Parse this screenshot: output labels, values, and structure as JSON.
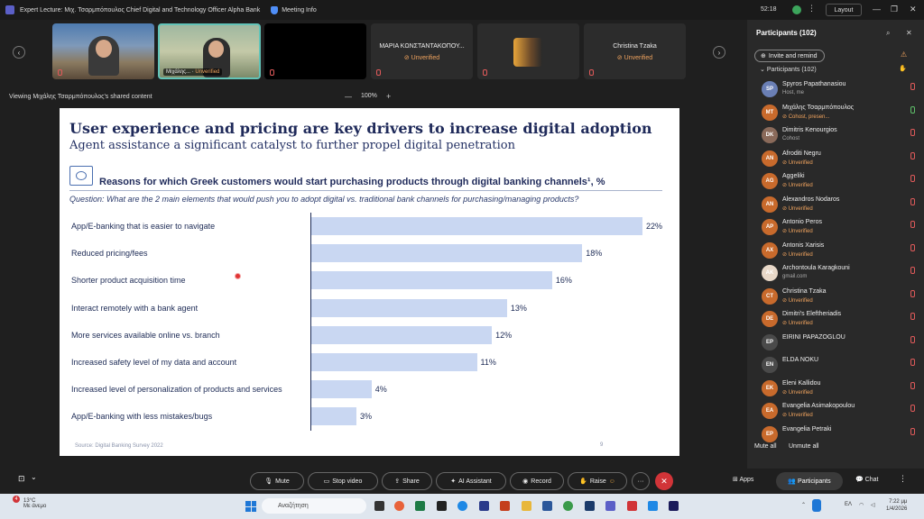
{
  "titlebar": {
    "title": "Expert Lecture: Μιχ. Τσαρμπόπουλος Chief Digital and Technology Officer Alpha Bank",
    "meeting_info": "Meeting Info",
    "clock": "52:18",
    "layout": "Layout"
  },
  "strip": {
    "tiles": [
      {
        "name": "",
        "status": ""
      },
      {
        "name": "Μιχάλης...",
        "status": "Unverified"
      },
      {
        "name": "",
        "status": ""
      },
      {
        "name": "ΜΑΡΙΑ ΚΩΝΣΤΑΝΤΑΚΟΠΟΥ...",
        "status": "Unverified"
      },
      {
        "name": "",
        "status": ""
      },
      {
        "name": "Christina Tzaka",
        "status": "Unverified"
      }
    ]
  },
  "sharebar": {
    "viewing": "Viewing Μιχάλης Τσαρμπόπουλος's shared content",
    "zoom": "100%"
  },
  "slide": {
    "title": "User experience and pricing are key drivers to increase digital adoption",
    "subtitle": "Agent assistance a significant catalyst to further propel digital penetration",
    "heading": "Reasons for which Greek customers would start purchasing products through digital banking channels¹, %",
    "question": "Question: What are the 2 main elements that would push you to adopt digital vs. traditional bank channels for purchasing/managing products?",
    "source": "Source: Digital Banking Survey 2022",
    "page": "9"
  },
  "chart_data": {
    "type": "bar",
    "orientation": "horizontal",
    "categories": [
      "App/E-banking that is easier to navigate",
      "Reduced pricing/fees",
      "Shorter product acquisition time",
      "Interact remotely with a bank agent",
      "More services available online vs. branch",
      "Increased safety level of my data and account",
      "Increased level of personalization of products and services",
      "App/E-banking with less mistakes/bugs"
    ],
    "values": [
      22,
      18,
      16,
      13,
      12,
      11,
      4,
      3
    ],
    "value_labels": [
      "22%",
      "18%",
      "16%",
      "13%",
      "12%",
      "11%",
      "4%",
      "3%"
    ],
    "xlim": [
      0,
      22
    ],
    "bar_color": "#c9d7f2"
  },
  "panel": {
    "title": "Participants (102)",
    "invite": "Invite and remind",
    "section": "Participants (102)",
    "participants": [
      {
        "initials": "SP",
        "name": "Spyros Papathanasiou",
        "sub": "Host, me",
        "unverified": false,
        "color": "#6a7fb5",
        "mic_on": false
      },
      {
        "initials": "MT",
        "name": "Μιχάλης Τσαρμπόπουλος",
        "sub": "Cohost, presen...",
        "unverified": true,
        "color": "#c86a2c",
        "mic_on": true
      },
      {
        "initials": "DK",
        "name": "Dimitris Kenourgios",
        "sub": "Cohost",
        "unverified": false,
        "color": "#8a6a5a",
        "mic_on": false
      },
      {
        "initials": "AN",
        "name": "Afroditi Negru",
        "sub": "Unverified",
        "unverified": true,
        "color": "#c86a2c",
        "mic_on": false
      },
      {
        "initials": "AG",
        "name": "Aggeliki",
        "sub": "Unverified",
        "unverified": true,
        "color": "#c86a2c",
        "mic_on": false
      },
      {
        "initials": "AN",
        "name": "Alexandros Nodaros",
        "sub": "Unverified",
        "unverified": true,
        "color": "#c86a2c",
        "mic_on": false
      },
      {
        "initials": "AP",
        "name": "Antonio Peros",
        "sub": "Unverified",
        "unverified": true,
        "color": "#c86a2c",
        "mic_on": false
      },
      {
        "initials": "AX",
        "name": "Antonis Xarisis",
        "sub": "Unverified",
        "unverified": true,
        "color": "#c86a2c",
        "mic_on": false
      },
      {
        "initials": "AK",
        "name": "Archontoula Karagkouni",
        "sub": "gmail.com",
        "unverified": false,
        "color": "#e8d8c8",
        "mic_on": false
      },
      {
        "initials": "CT",
        "name": "Christina Tzaka",
        "sub": "Unverified",
        "unverified": true,
        "color": "#c86a2c",
        "mic_on": false
      },
      {
        "initials": "DE",
        "name": "Dimitri's Eleftheriadis",
        "sub": "Unverified",
        "unverified": true,
        "color": "#c86a2c",
        "mic_on": false
      },
      {
        "initials": "EP",
        "name": "EIRINI PAPAZOGLOU",
        "sub": "",
        "unverified": false,
        "color": "#4a4a4a",
        "mic_on": false
      },
      {
        "initials": "EN",
        "name": "ELDA NOKU",
        "sub": "",
        "unverified": false,
        "color": "#4a4a4a",
        "mic_on": false
      },
      {
        "initials": "EK",
        "name": "Eleni Kallidou",
        "sub": "Unverified",
        "unverified": true,
        "color": "#c86a2c",
        "mic_on": false
      },
      {
        "initials": "EA",
        "name": "Evangelia Asimakopoulou",
        "sub": "Unverified",
        "unverified": true,
        "color": "#c86a2c",
        "mic_on": false
      },
      {
        "initials": "EP",
        "name": "Evangelia Petraki",
        "sub": "",
        "unverified": false,
        "color": "#c86a2c",
        "mic_on": false
      }
    ],
    "mute_all": "Mute all",
    "unmute_all": "Unmute all"
  },
  "toolbar": {
    "mute": "Mute",
    "stop_video": "Stop video",
    "share": "Share",
    "ai_assistant": "AI Assistant",
    "record": "Record",
    "raise": "Raise",
    "more": "···",
    "apps": "Apps",
    "participants": "Participants",
    "chat": "Chat"
  },
  "taskbar": {
    "temp": "13°C",
    "weather": "Με άνεμο",
    "badge": "4",
    "search": "Αναζήτηση",
    "lang": "ΕΛ",
    "time": "7:22 μμ",
    "date": "1/4/2026"
  }
}
